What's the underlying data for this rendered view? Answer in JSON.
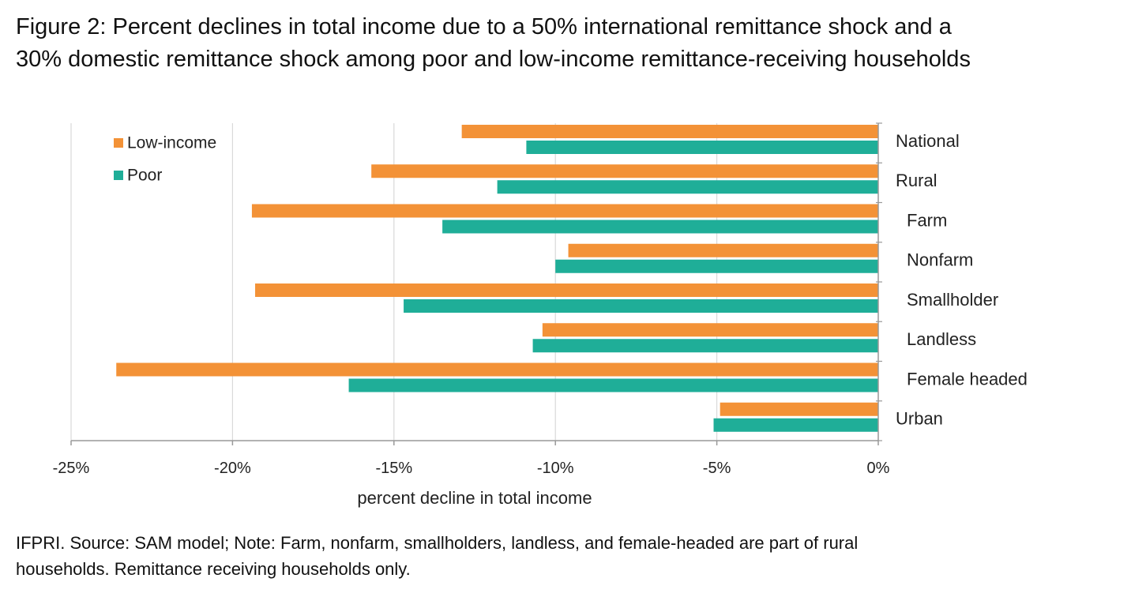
{
  "figure": {
    "title_lines": [
      "Figure 2: Percent declines in total income due to a 50% international remittance shock and a",
      "30% domestic remittance shock among poor and low-income remittance-receiving households"
    ],
    "note_lines": [
      "IFPRI. Source: SAM model; Note: Farm, nonfarm, smallholders, landless, and female-headed are part of rural",
      "households. Remittance receiving households only."
    ]
  },
  "chart_data": {
    "type": "bar",
    "orientation": "horizontal",
    "categories": [
      "National",
      "Rural",
      "Farm",
      "Nonfarm",
      "Smallholder",
      "Landless",
      "Female headed",
      "Urban"
    ],
    "series": [
      {
        "name": "Low-income",
        "color": "#F39237",
        "values": [
          -12.9,
          -15.7,
          -19.4,
          -9.6,
          -19.3,
          -10.4,
          -23.6,
          -4.9
        ]
      },
      {
        "name": "Poor",
        "color": "#1FAE98",
        "values": [
          -10.9,
          -11.8,
          -13.5,
          -10.0,
          -14.7,
          -10.7,
          -16.4,
          -5.1
        ]
      }
    ],
    "xlabel": "percent decline in total income",
    "ylabel": "",
    "xlim": [
      -25,
      0
    ],
    "xticks": [
      -25,
      -20,
      -15,
      -10,
      -5,
      0
    ],
    "xtick_labels": [
      "-25%",
      "-20%",
      "-15%",
      "-10%",
      "-5%",
      "0%"
    ],
    "grid": "vertical",
    "legend_position": "top-left"
  }
}
